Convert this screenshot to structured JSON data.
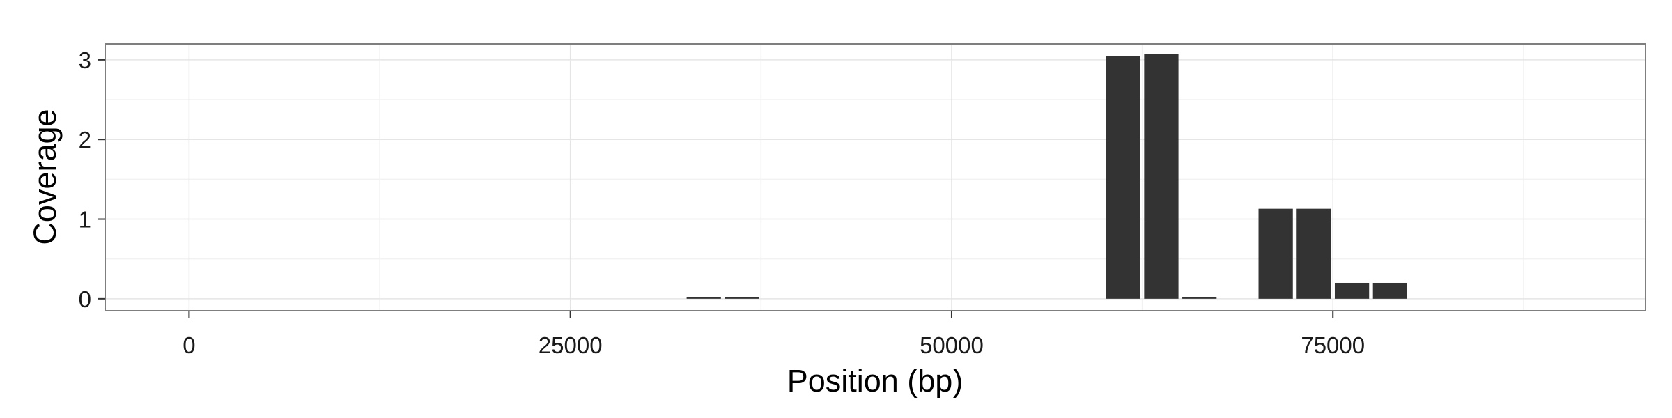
{
  "chart_data": {
    "type": "bar",
    "title": "",
    "xlabel": "Position (bp)",
    "ylabel": "Coverage",
    "xlim": [
      -5500,
      95500
    ],
    "ylim": [
      -0.15,
      3.2
    ],
    "x_ticks": [
      0,
      25000,
      50000,
      75000
    ],
    "x_tick_labels": [
      "0",
      "25000",
      "50000",
      "75000"
    ],
    "y_ticks": [
      0,
      1,
      2,
      3
    ],
    "y_tick_labels": [
      "0",
      "1",
      "2",
      "3"
    ],
    "bin_width": 2500,
    "grid": true,
    "legend": "none",
    "bar_color": "#333333",
    "series": [
      {
        "x": [
          33750,
          36250,
          61250,
          63750,
          66250,
          71250,
          73750,
          76250,
          78750
        ],
        "values": [
          0.02,
          0.02,
          3.05,
          3.07,
          0.02,
          1.13,
          1.13,
          0.2,
          0.2
        ]
      }
    ]
  }
}
